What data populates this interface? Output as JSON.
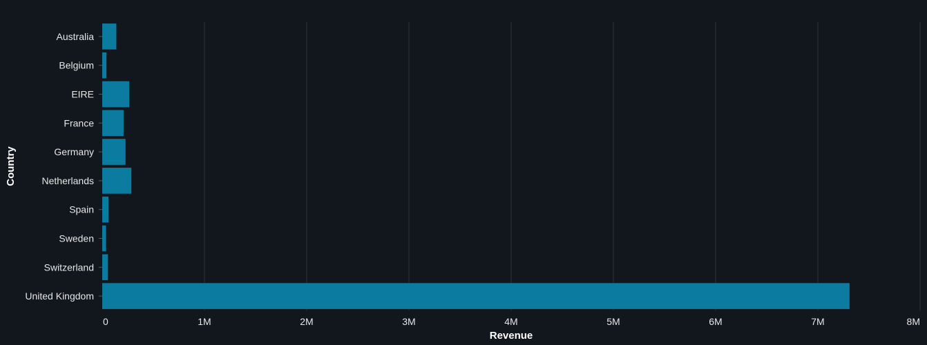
{
  "chart_data": {
    "type": "bar",
    "orientation": "horizontal",
    "categories": [
      "Australia",
      "Belgium",
      "EIRE",
      "France",
      "Germany",
      "Netherlands",
      "Spain",
      "Sweden",
      "Switzerland",
      "United Kingdom"
    ],
    "values": [
      138000,
      41000,
      264000,
      209000,
      228000,
      285000,
      61000,
      37000,
      56000,
      7310000
    ],
    "xlabel": "Revenue",
    "ylabel": "Country",
    "xlim": [
      0,
      8000000
    ],
    "x_ticks": [
      0,
      1000000,
      2000000,
      3000000,
      4000000,
      5000000,
      6000000,
      7000000,
      8000000
    ],
    "x_tick_labels": [
      "0",
      "1M",
      "2M",
      "3M",
      "4M",
      "5M",
      "6M",
      "7M",
      "8M"
    ],
    "grid": "vertical",
    "colors": {
      "background": "#12161d",
      "bar": "#0b7ba0",
      "grid": "#2f3338",
      "text": "#e6e6e6"
    }
  }
}
